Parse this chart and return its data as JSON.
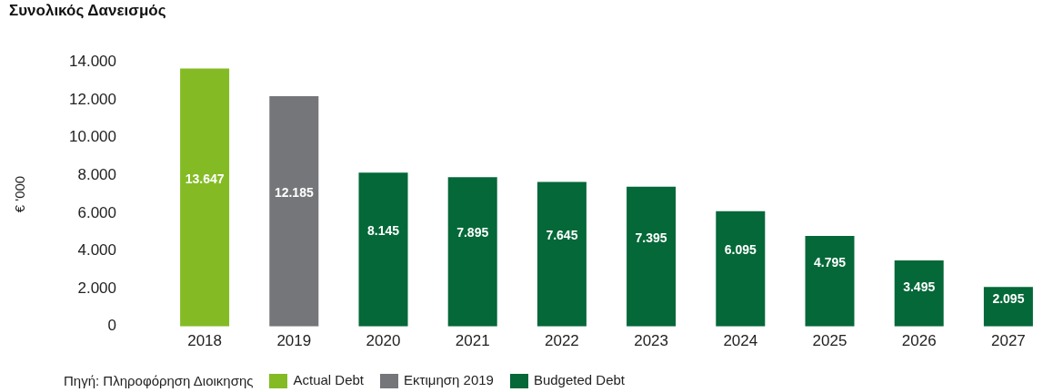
{
  "chart_data": {
    "type": "bar",
    "title": "Συνολικός Δανεισμός",
    "ylabel": "€ '000",
    "categories": [
      "2018",
      "2019",
      "2020",
      "2021",
      "2022",
      "2023",
      "2024",
      "2025",
      "2026",
      "2027"
    ],
    "series": [
      {
        "name": "Actual Debt",
        "color": "#84bb25",
        "values": [
          13647,
          null,
          null,
          null,
          null,
          null,
          null,
          null,
          null,
          null
        ],
        "value_labels": [
          "13.647",
          null,
          null,
          null,
          null,
          null,
          null,
          null,
          null,
          null
        ]
      },
      {
        "name": "Εκτιμηση 2019",
        "color": "#75767a",
        "values": [
          null,
          12185,
          null,
          null,
          null,
          null,
          null,
          null,
          null,
          null
        ],
        "value_labels": [
          null,
          "12.185",
          null,
          null,
          null,
          null,
          null,
          null,
          null,
          null
        ]
      },
      {
        "name": "Budgeted Debt",
        "color": "#046838",
        "values": [
          null,
          null,
          8145,
          7895,
          7645,
          7395,
          6095,
          4795,
          3495,
          2095
        ],
        "value_labels": [
          null,
          null,
          "8.145",
          "7.895",
          "7.645",
          "7.395",
          "6.095",
          "4.795",
          "3.495",
          "2.095"
        ]
      }
    ],
    "ylim": [
      0,
      14000
    ],
    "yticks": [
      {
        "value": 0,
        "label": "0"
      },
      {
        "value": 2000,
        "label": "2.000"
      },
      {
        "value": 4000,
        "label": "4.000"
      },
      {
        "value": 6000,
        "label": "6.000"
      },
      {
        "value": 8000,
        "label": "8.000"
      },
      {
        "value": 10000,
        "label": "10.000"
      },
      {
        "value": 12000,
        "label": "12.000"
      },
      {
        "value": 14000,
        "label": "14.000"
      }
    ],
    "grid": false,
    "legend": "bottom",
    "annotations": [
      "Πηγή: Πληροφόρηση Διοικησης"
    ]
  }
}
